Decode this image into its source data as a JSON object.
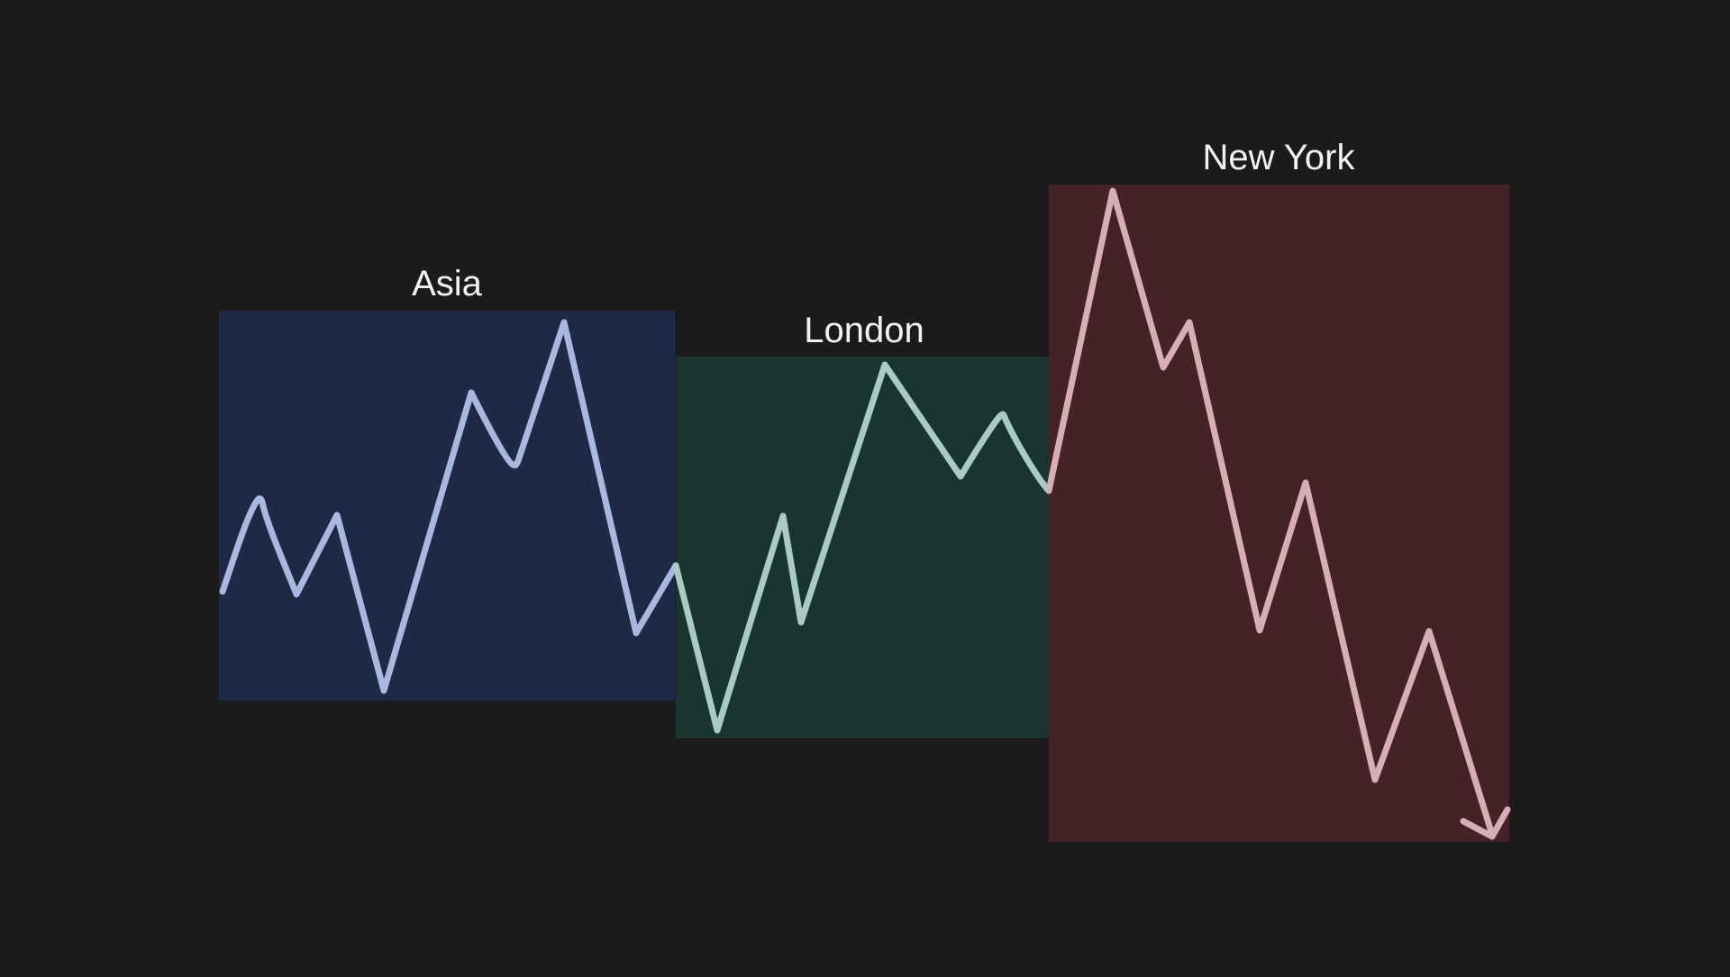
{
  "colors": {
    "background": "#1b1b1b",
    "asia_box": "#1e2946",
    "asia_line": "#a9b8e0",
    "london_box": "#1a3530",
    "london_line": "#a9cbc4",
    "newyork_box": "#452226",
    "newyork_line": "#d7aeb7",
    "label_text": "#f2f2f2"
  },
  "sessions": [
    {
      "label": "Asia"
    },
    {
      "label": "London"
    },
    {
      "label": "New York"
    }
  ],
  "icons": {
    "trend_end": "arrow-down-right-icon"
  }
}
